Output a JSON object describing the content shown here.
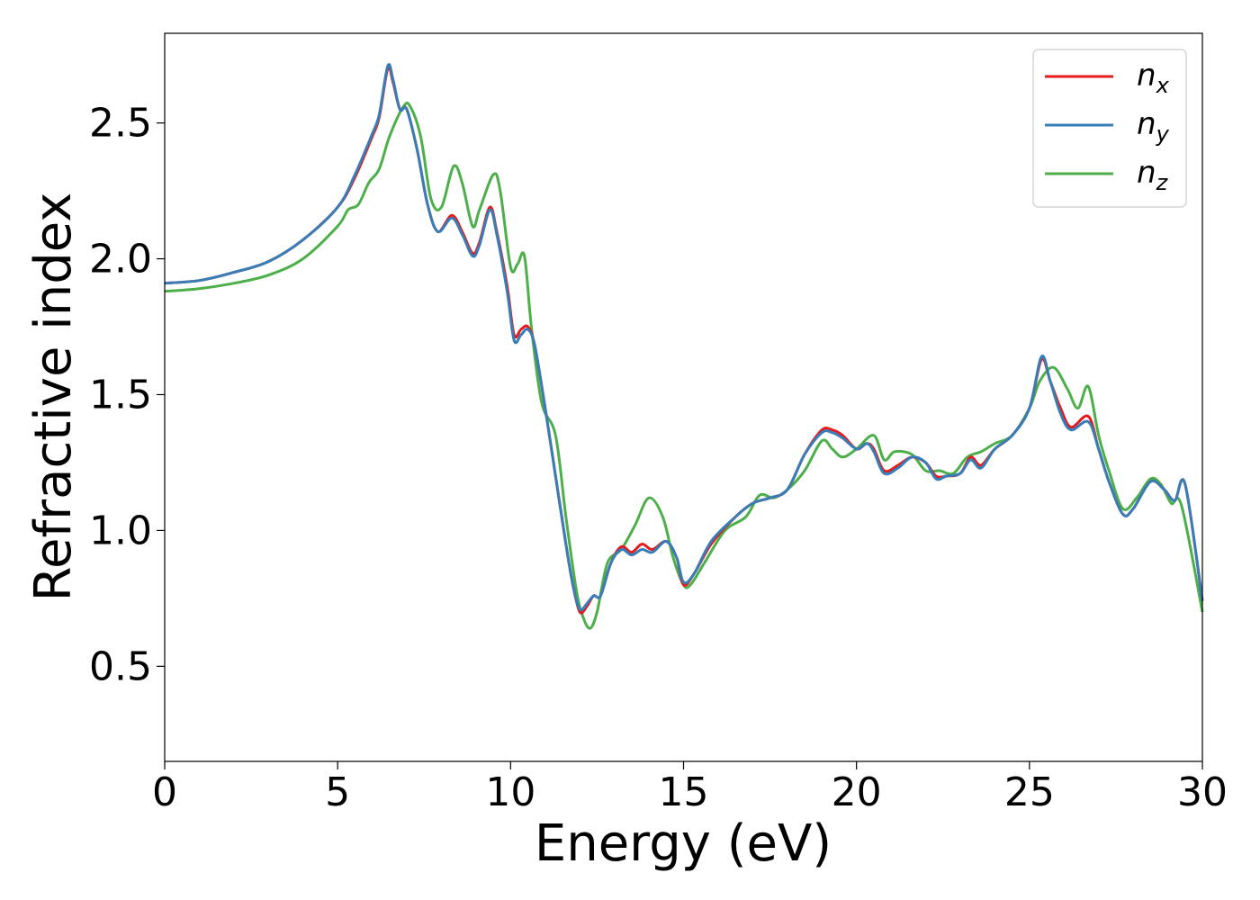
{
  "chart_data": {
    "type": "line",
    "title": "",
    "xlabel": "Energy (eV)",
    "ylabel": "Refractive index",
    "xlim": [
      0,
      30
    ],
    "ylim": [
      0.15,
      2.83
    ],
    "xticks": [
      0,
      5,
      10,
      15,
      20,
      25,
      30
    ],
    "xtick_labels": [
      "0",
      "5",
      "10",
      "15",
      "20",
      "25",
      "30"
    ],
    "yticks": [
      0.5,
      1.0,
      1.5,
      2.0,
      2.5
    ],
    "ytick_labels": [
      "0.5",
      "1.0",
      "1.5",
      "2.0",
      "2.5"
    ],
    "grid": false,
    "legend_position": "top-right",
    "series": [
      {
        "name": "n_x",
        "label_main": "n",
        "label_sub": "x",
        "color": "#e41a1c",
        "x": [
          0,
          1,
          2,
          3,
          4,
          5,
          5.5,
          6.0,
          6.2,
          6.45,
          6.6,
          6.8,
          7.0,
          7.3,
          7.6,
          7.9,
          8.3,
          8.6,
          8.9,
          9.1,
          9.4,
          9.6,
          9.9,
          10.1,
          10.3,
          10.5,
          10.7,
          11.0,
          11.3,
          11.6,
          11.8,
          12.0,
          12.2,
          12.4,
          12.6,
          12.9,
          13.2,
          13.5,
          13.8,
          14.1,
          14.5,
          14.8,
          15.0,
          15.3,
          15.8,
          16.5,
          17.0,
          17.5,
          18.0,
          18.5,
          19.0,
          19.3,
          19.6,
          20.0,
          20.3,
          20.5,
          20.8,
          21.2,
          21.6,
          22.0,
          22.3,
          22.6,
          23.0,
          23.3,
          23.6,
          24.0,
          24.5,
          25.0,
          25.35,
          25.6,
          25.9,
          26.2,
          26.7,
          27.0,
          27.3,
          27.7,
          28.0,
          28.5,
          28.9,
          29.2,
          29.5,
          30.0
        ],
        "values": [
          1.91,
          1.92,
          1.95,
          1.99,
          2.07,
          2.19,
          2.3,
          2.45,
          2.52,
          2.7,
          2.65,
          2.55,
          2.55,
          2.4,
          2.2,
          2.1,
          2.16,
          2.1,
          2.02,
          2.06,
          2.19,
          2.1,
          1.9,
          1.72,
          1.74,
          1.75,
          1.68,
          1.45,
          1.2,
          0.95,
          0.8,
          0.7,
          0.72,
          0.76,
          0.76,
          0.88,
          0.94,
          0.92,
          0.95,
          0.93,
          0.96,
          0.9,
          0.8,
          0.84,
          0.95,
          1.05,
          1.1,
          1.12,
          1.15,
          1.28,
          1.37,
          1.37,
          1.35,
          1.3,
          1.32,
          1.3,
          1.22,
          1.24,
          1.27,
          1.25,
          1.2,
          1.2,
          1.21,
          1.27,
          1.24,
          1.3,
          1.35,
          1.45,
          1.63,
          1.55,
          1.45,
          1.38,
          1.42,
          1.3,
          1.18,
          1.06,
          1.08,
          1.18,
          1.15,
          1.11,
          1.17,
          0.74
        ]
      },
      {
        "name": "n_y",
        "label_main": "n",
        "label_sub": "y",
        "color": "#377eb8",
        "x": [
          0,
          1,
          2,
          3,
          4,
          5,
          5.5,
          6.0,
          6.2,
          6.45,
          6.6,
          6.8,
          7.0,
          7.3,
          7.6,
          7.9,
          8.3,
          8.6,
          8.9,
          9.1,
          9.4,
          9.6,
          9.9,
          10.1,
          10.3,
          10.5,
          10.7,
          11.0,
          11.3,
          11.6,
          11.8,
          12.0,
          12.2,
          12.4,
          12.6,
          12.9,
          13.2,
          13.5,
          13.8,
          14.1,
          14.5,
          14.8,
          15.0,
          15.3,
          15.8,
          16.5,
          17.0,
          17.5,
          18.0,
          18.5,
          19.0,
          19.3,
          19.6,
          20.0,
          20.3,
          20.5,
          20.8,
          21.2,
          21.6,
          22.0,
          22.3,
          22.6,
          23.0,
          23.3,
          23.6,
          24.0,
          24.5,
          25.0,
          25.35,
          25.6,
          25.9,
          26.2,
          26.7,
          27.0,
          27.3,
          27.7,
          28.0,
          28.5,
          28.9,
          29.2,
          29.5,
          30.0
        ],
        "values": [
          1.91,
          1.92,
          1.95,
          1.99,
          2.07,
          2.19,
          2.31,
          2.46,
          2.53,
          2.71,
          2.66,
          2.55,
          2.55,
          2.4,
          2.2,
          2.1,
          2.15,
          2.09,
          2.01,
          2.05,
          2.18,
          2.09,
          1.88,
          1.7,
          1.72,
          1.74,
          1.68,
          1.45,
          1.2,
          0.95,
          0.8,
          0.71,
          0.73,
          0.76,
          0.76,
          0.88,
          0.93,
          0.91,
          0.93,
          0.92,
          0.96,
          0.9,
          0.81,
          0.84,
          0.96,
          1.05,
          1.1,
          1.12,
          1.15,
          1.28,
          1.36,
          1.36,
          1.34,
          1.3,
          1.32,
          1.29,
          1.21,
          1.23,
          1.27,
          1.25,
          1.19,
          1.2,
          1.21,
          1.26,
          1.23,
          1.3,
          1.35,
          1.45,
          1.64,
          1.55,
          1.43,
          1.37,
          1.4,
          1.3,
          1.18,
          1.06,
          1.08,
          1.18,
          1.15,
          1.11,
          1.17,
          0.74
        ]
      },
      {
        "name": "n_z",
        "label_main": "n",
        "label_sub": "z",
        "color": "#4daf4a",
        "x": [
          0,
          1,
          2,
          3,
          4,
          5,
          5.3,
          5.6,
          5.9,
          6.2,
          6.5,
          6.9,
          7.1,
          7.4,
          7.7,
          8.0,
          8.35,
          8.6,
          8.9,
          9.1,
          9.5,
          9.7,
          10.0,
          10.2,
          10.4,
          10.6,
          10.9,
          11.3,
          11.6,
          11.9,
          12.1,
          12.3,
          12.5,
          12.8,
          13.2,
          13.6,
          14.0,
          14.4,
          14.7,
          15.0,
          15.2,
          15.6,
          16.2,
          16.8,
          17.2,
          17.6,
          18.0,
          18.5,
          19.0,
          19.3,
          19.6,
          20.0,
          20.5,
          20.8,
          21.1,
          21.6,
          22.0,
          22.4,
          22.8,
          23.2,
          23.6,
          24.0,
          24.5,
          25.0,
          25.3,
          25.7,
          26.1,
          26.4,
          26.7,
          27.0,
          27.3,
          27.7,
          28.1,
          28.5,
          28.8,
          29.1,
          29.4,
          30.0
        ],
        "values": [
          1.88,
          1.89,
          1.91,
          1.94,
          2.0,
          2.12,
          2.18,
          2.2,
          2.28,
          2.33,
          2.45,
          2.56,
          2.56,
          2.45,
          2.22,
          2.19,
          2.34,
          2.28,
          2.12,
          2.18,
          2.31,
          2.25,
          1.97,
          1.98,
          2.01,
          1.75,
          1.47,
          1.35,
          1.05,
          0.78,
          0.68,
          0.64,
          0.7,
          0.88,
          0.93,
          1.02,
          1.12,
          1.05,
          0.9,
          0.8,
          0.8,
          0.88,
          1.0,
          1.05,
          1.13,
          1.12,
          1.15,
          1.22,
          1.33,
          1.3,
          1.27,
          1.3,
          1.35,
          1.26,
          1.29,
          1.28,
          1.22,
          1.22,
          1.21,
          1.27,
          1.29,
          1.32,
          1.35,
          1.45,
          1.55,
          1.6,
          1.52,
          1.45,
          1.53,
          1.35,
          1.22,
          1.08,
          1.12,
          1.19,
          1.17,
          1.1,
          1.09,
          0.7
        ]
      }
    ]
  }
}
